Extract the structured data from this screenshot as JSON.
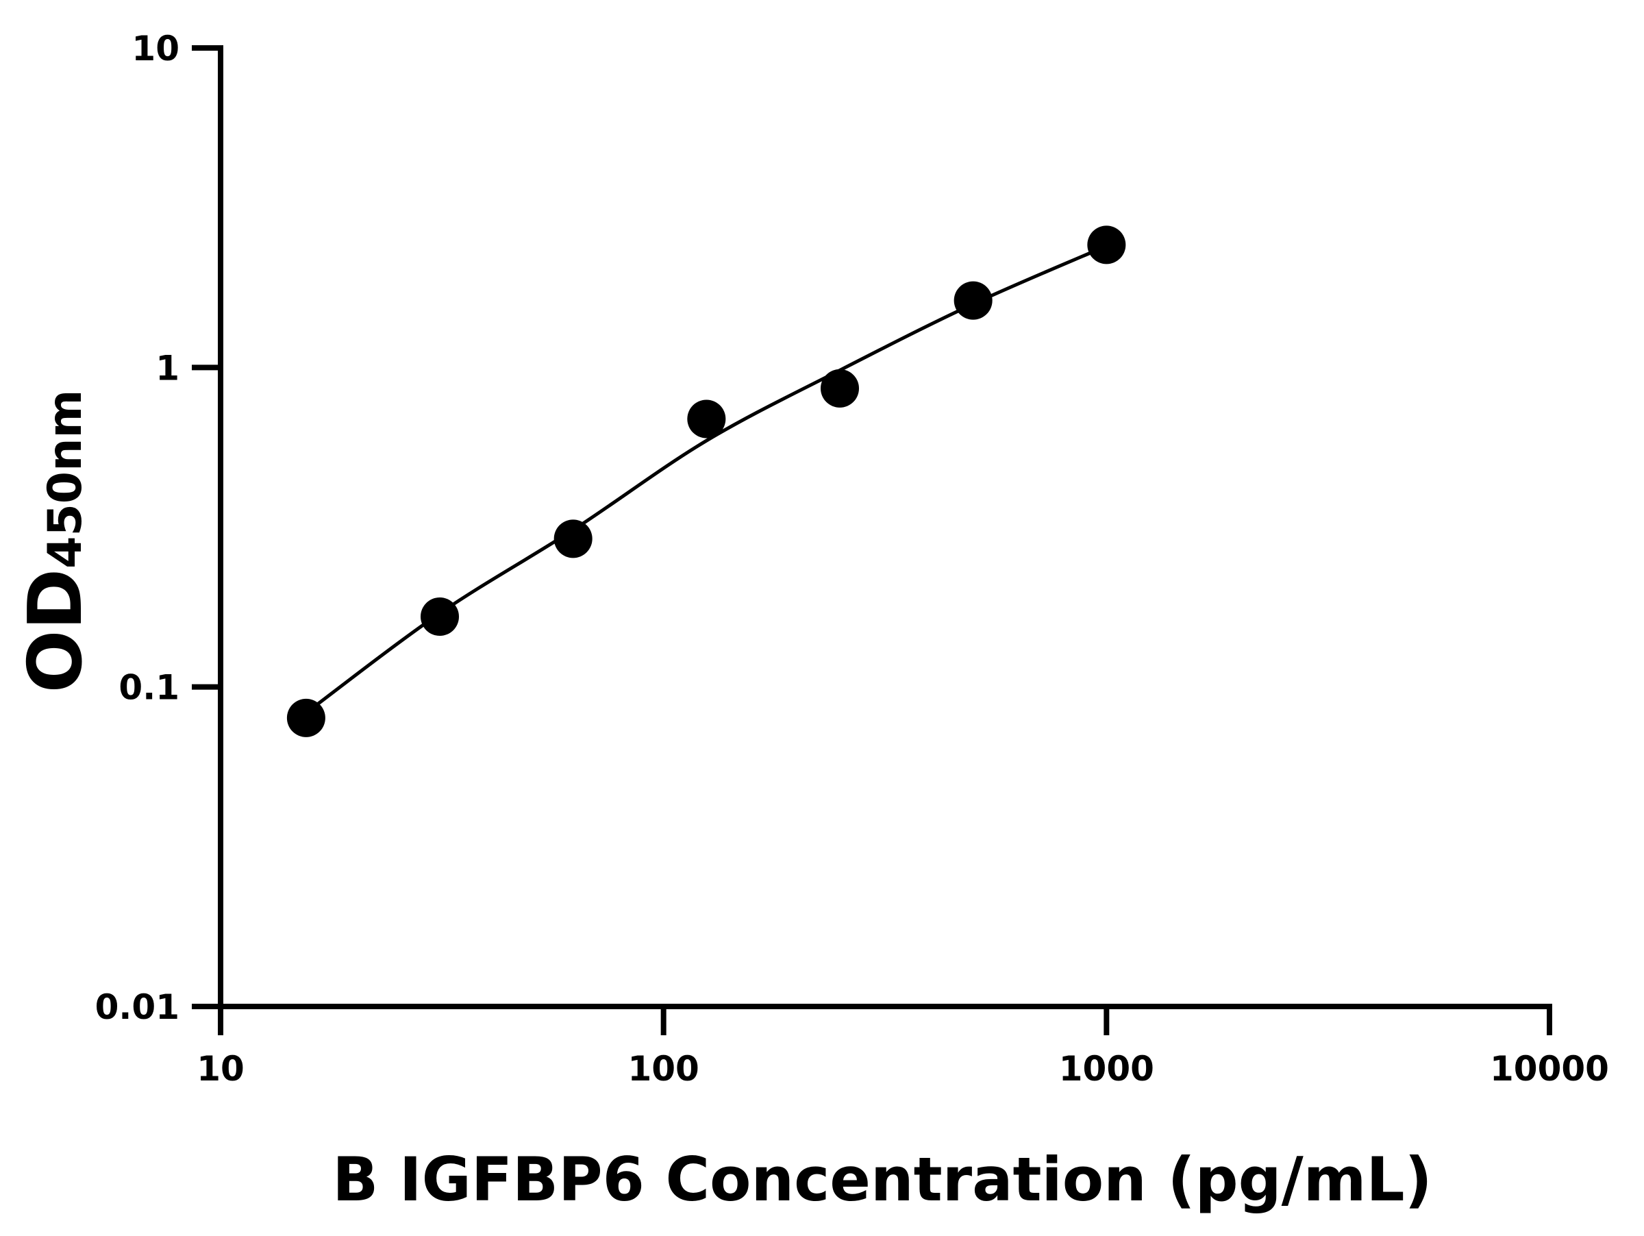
{
  "chart_data": {
    "type": "scatter",
    "xlabel": "B IGFBP6 Concentration (pg/mL)",
    "ylabel": {
      "main": "OD",
      "sub": "450nm"
    },
    "x": [
      15.6,
      31.25,
      62.5,
      125,
      250,
      500,
      1000
    ],
    "values": [
      0.08,
      0.166,
      0.291,
      0.69,
      0.86,
      1.62,
      2.42
    ],
    "color": "#000000",
    "fit": {
      "x": [
        15.6,
        31.25,
        62.5,
        125,
        250,
        500,
        1000
      ],
      "values": [
        0.083,
        0.17,
        0.31,
        0.59,
        0.98,
        1.58,
        2.4
      ]
    },
    "xscale": "log",
    "yscale": "log",
    "xlim": [
      10,
      10000
    ],
    "xticks": [
      10,
      100,
      1000,
      10000
    ],
    "ylim": [
      0.01,
      10
    ],
    "yticks": [
      0.01,
      0.1,
      1,
      10
    ],
    "grid": false
  }
}
